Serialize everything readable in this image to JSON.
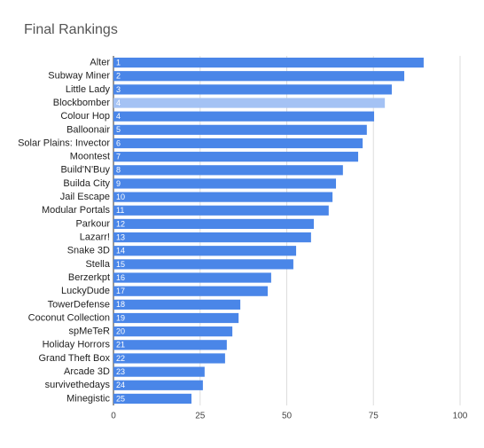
{
  "chart_data": {
    "type": "barh",
    "title": "Final Rankings",
    "categories": [
      "Alter",
      "Subway Miner",
      "Little Lady",
      "Blockbomber",
      "Colour Hop",
      "Balloonair",
      "Solar Plains: Invector",
      "Moontest",
      "Build'N'Buy",
      "Builda City",
      "Jail Escape",
      "Modular Portals",
      "Parkour",
      "Lazarr!",
      "Snake 3D",
      "Stella",
      "Berzerkpt",
      "LuckyDude",
      "TowerDefense",
      "Coconut Collection",
      "spMeTeR",
      "Holiday Horrors",
      "Grand Theft Box",
      "Arcade 3D",
      "survivethedays",
      "Minegistic"
    ],
    "values": [
      89.5,
      83.9,
      80.3,
      78.3,
      75.2,
      73.1,
      71.9,
      70.6,
      66.2,
      64.2,
      63.2,
      62.1,
      57.8,
      57.0,
      52.7,
      51.9,
      45.5,
      44.5,
      36.6,
      36.1,
      34.3,
      32.7,
      32.2,
      26.3,
      25.8,
      22.5
    ],
    "bar_labels": [
      "1",
      "2",
      "3",
      "4",
      "4",
      "5",
      "6",
      "7",
      "8",
      "9",
      "10",
      "11",
      "12",
      "13",
      "14",
      "15",
      "16",
      "17",
      "18",
      "19",
      "20",
      "21",
      "22",
      "23",
      "24",
      "25"
    ],
    "colors": [
      "#4a86e8",
      "#4a86e8",
      "#4a86e8",
      "#a4c2f4",
      "#4a86e8",
      "#4a86e8",
      "#4a86e8",
      "#4a86e8",
      "#4a86e8",
      "#4a86e8",
      "#4a86e8",
      "#4a86e8",
      "#4a86e8",
      "#4a86e8",
      "#4a86e8",
      "#4a86e8",
      "#4a86e8",
      "#4a86e8",
      "#4a86e8",
      "#4a86e8",
      "#4a86e8",
      "#4a86e8",
      "#4a86e8",
      "#4a86e8",
      "#4a86e8",
      "#4a86e8"
    ],
    "xlim": [
      0,
      100
    ],
    "xticks": [
      0,
      25,
      50,
      75,
      100
    ],
    "grid": true
  }
}
